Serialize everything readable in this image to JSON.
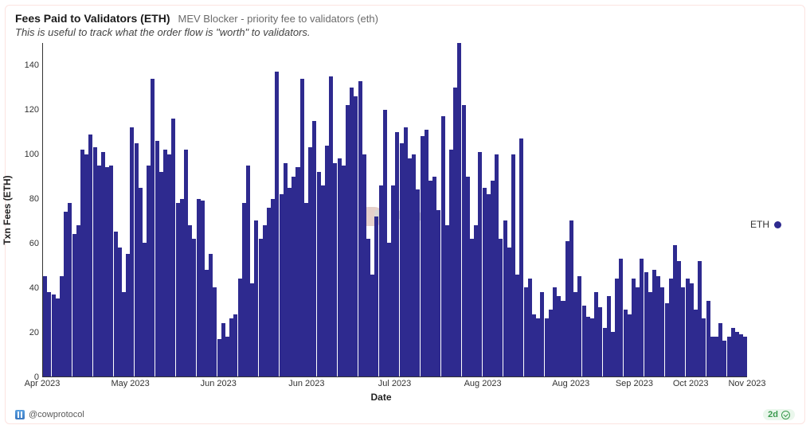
{
  "header": {
    "title": "Fees Paid to Validators (ETH)",
    "subtitle": "MEV Blocker - priority fee to validators (eth)",
    "description": "This is useful to track what the order flow is \"worth\" to validators."
  },
  "chart": {
    "type": "bar",
    "ylabel": "Txn Fees (ETH)",
    "xlabel": "Date",
    "ylim": [
      0,
      150
    ],
    "yticks": [
      0,
      20,
      40,
      60,
      80,
      100,
      120,
      140
    ],
    "bar_color": "#2e2a8f",
    "background_color": "#ffffff",
    "axis_color": "#333333",
    "tick_fontsize": 11,
    "label_fontsize": 12,
    "xticks": [
      {
        "pos": 0.0,
        "label": "Apr 2023"
      },
      {
        "pos": 0.125,
        "label": "May 2023"
      },
      {
        "pos": 0.25,
        "label": "Jun 2023"
      },
      {
        "pos": 0.375,
        "label": "Jun 2023"
      },
      {
        "pos": 0.5,
        "label": "Jul 2023"
      },
      {
        "pos": 0.625,
        "label": "Aug 2023"
      },
      {
        "pos": 0.75,
        "label": "Aug 2023"
      },
      {
        "pos": 0.84,
        "label": "Sep 2023"
      },
      {
        "pos": 0.92,
        "label": "Oct 2023"
      },
      {
        "pos": 1.0,
        "label": "Nov 2023"
      }
    ],
    "values": [
      45,
      38,
      37,
      35,
      45,
      74,
      78,
      64,
      68,
      102,
      100,
      109,
      103,
      95,
      101,
      94,
      95,
      65,
      58,
      38,
      55,
      112,
      105,
      85,
      60,
      95,
      134,
      106,
      92,
      102,
      100,
      116,
      78,
      80,
      102,
      68,
      62,
      80,
      79,
      48,
      55,
      40,
      17,
      24,
      18,
      26,
      28,
      44,
      78,
      95,
      42,
      70,
      62,
      68,
      76,
      80,
      137,
      82,
      96,
      85,
      90,
      94,
      134,
      78,
      103,
      115,
      92,
      86,
      104,
      135,
      96,
      98,
      95,
      122,
      130,
      126,
      133,
      100,
      62,
      46,
      72,
      86,
      120,
      60,
      86,
      110,
      105,
      112,
      98,
      100,
      84,
      108,
      111,
      88,
      90,
      75,
      117,
      68,
      102,
      130,
      150,
      122,
      90,
      62,
      68,
      101,
      85,
      82,
      88,
      100,
      62,
      70,
      58,
      100,
      46,
      107,
      40,
      44,
      28,
      26,
      38,
      26,
      30,
      40,
      36,
      34,
      61,
      70,
      38,
      45,
      32,
      27,
      26,
      38,
      31,
      22,
      36,
      20,
      44,
      53,
      30,
      28,
      44,
      40,
      53,
      47,
      38,
      48,
      45,
      40,
      33,
      44,
      59,
      52,
      40,
      44,
      42,
      30,
      52,
      26,
      34,
      18,
      18,
      24,
      16,
      18,
      22,
      20,
      19,
      18
    ]
  },
  "legend": {
    "label": "ETH",
    "color": "#2e2a8f"
  },
  "watermark": {
    "text": "Dune"
  },
  "footer": {
    "attribution": "@cowprotocol",
    "freshness": "2d"
  }
}
